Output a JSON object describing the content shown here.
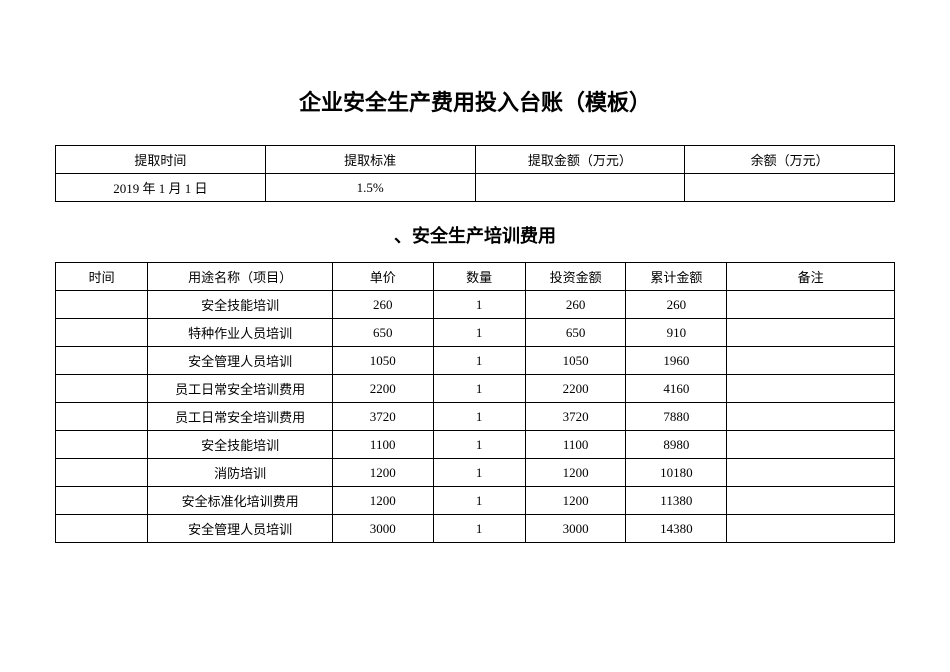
{
  "main_title": "企业安全生产费用投入台账（模板）",
  "header_table": {
    "columns": [
      "提取时间",
      "提取标准",
      "提取金额（万元）",
      "余额（万元）"
    ],
    "row": [
      "2019 年 1 月 1 日",
      "1.5%",
      "",
      ""
    ]
  },
  "sub_title": "、安全生产培训费用",
  "detail_table": {
    "columns": [
      "时间",
      "用途名称（项目）",
      "单价",
      "数量",
      "投资金额",
      "累计金额",
      "备注"
    ],
    "rows": [
      [
        "",
        "安全技能培训",
        "260",
        "1",
        "260",
        "260",
        ""
      ],
      [
        "",
        "特种作业人员培训",
        "650",
        "1",
        "650",
        "910",
        ""
      ],
      [
        "",
        "安全管理人员培训",
        "1050",
        "1",
        "1050",
        "1960",
        ""
      ],
      [
        "",
        "员工日常安全培训费用",
        "2200",
        "1",
        "2200",
        "4160",
        ""
      ],
      [
        "",
        "员工日常安全培训费用",
        "3720",
        "1",
        "3720",
        "7880",
        ""
      ],
      [
        "",
        "安全技能培训",
        "1100",
        "1",
        "1100",
        "8980",
        ""
      ],
      [
        "",
        "消防培训",
        "1200",
        "1",
        "1200",
        "10180",
        ""
      ],
      [
        "",
        "安全标准化培训费用",
        "1200",
        "1",
        "1200",
        "11380",
        ""
      ],
      [
        "",
        "安全管理人员培训",
        "3000",
        "1",
        "3000",
        "14380",
        ""
      ]
    ]
  }
}
